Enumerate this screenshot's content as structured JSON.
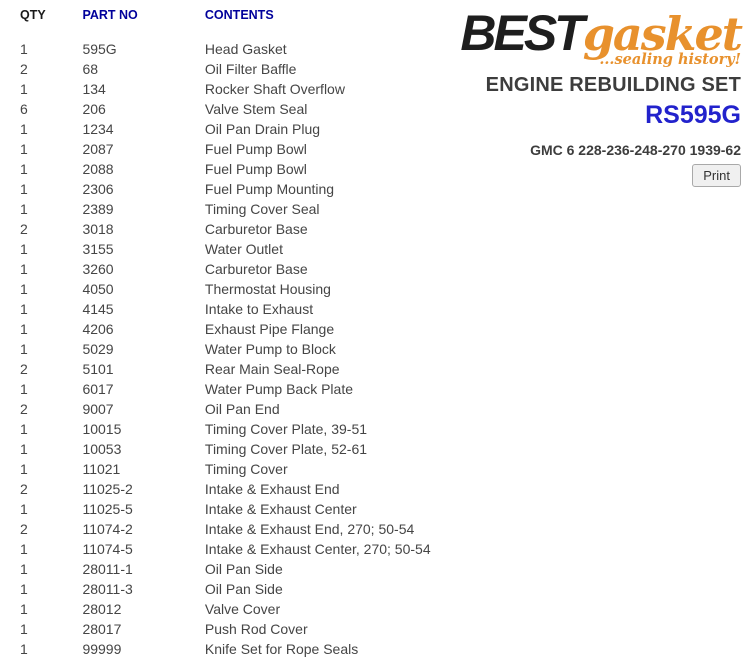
{
  "table": {
    "headers": {
      "qty": "QTY",
      "part_no": "PART NO",
      "contents": "CONTENTS"
    },
    "rows": [
      {
        "qty": "1",
        "part_no": "595G",
        "contents": "Head Gasket"
      },
      {
        "qty": "2",
        "part_no": "68",
        "contents": "Oil Filter Baffle"
      },
      {
        "qty": "1",
        "part_no": "134",
        "contents": "Rocker Shaft Overflow"
      },
      {
        "qty": "6",
        "part_no": "206",
        "contents": "Valve Stem Seal"
      },
      {
        "qty": "1",
        "part_no": "1234",
        "contents": "Oil Pan Drain Plug"
      },
      {
        "qty": "1",
        "part_no": "2087",
        "contents": "Fuel Pump Bowl"
      },
      {
        "qty": "1",
        "part_no": "2088",
        "contents": "Fuel Pump Bowl"
      },
      {
        "qty": "1",
        "part_no": "2306",
        "contents": "Fuel Pump Mounting"
      },
      {
        "qty": "1",
        "part_no": "2389",
        "contents": "Timing Cover Seal"
      },
      {
        "qty": "2",
        "part_no": "3018",
        "contents": "Carburetor Base"
      },
      {
        "qty": "1",
        "part_no": "3155",
        "contents": "Water Outlet"
      },
      {
        "qty": "1",
        "part_no": "3260",
        "contents": "Carburetor Base"
      },
      {
        "qty": "1",
        "part_no": "4050",
        "contents": "Thermostat Housing"
      },
      {
        "qty": "1",
        "part_no": "4145",
        "contents": "Intake to Exhaust"
      },
      {
        "qty": "1",
        "part_no": "4206",
        "contents": "Exhaust Pipe Flange"
      },
      {
        "qty": "1",
        "part_no": "5029",
        "contents": "Water Pump to Block"
      },
      {
        "qty": "2",
        "part_no": "5101",
        "contents": "Rear Main Seal-Rope"
      },
      {
        "qty": "1",
        "part_no": "6017",
        "contents": "Water Pump Back Plate"
      },
      {
        "qty": "2",
        "part_no": "9007",
        "contents": "Oil Pan End"
      },
      {
        "qty": "1",
        "part_no": "10015",
        "contents": "Timing Cover Plate, 39-51"
      },
      {
        "qty": "1",
        "part_no": "10053",
        "contents": "Timing Cover Plate, 52-61"
      },
      {
        "qty": "1",
        "part_no": "11021",
        "contents": "Timing Cover"
      },
      {
        "qty": "2",
        "part_no": "11025-2",
        "contents": "Intake & Exhaust End"
      },
      {
        "qty": "1",
        "part_no": "11025-5",
        "contents": "Intake & Exhaust Center"
      },
      {
        "qty": "2",
        "part_no": "11074-2",
        "contents": "Intake & Exhaust End, 270; 50-54"
      },
      {
        "qty": "1",
        "part_no": "11074-5",
        "contents": "Intake & Exhaust Center, 270; 50-54"
      },
      {
        "qty": "1",
        "part_no": "28011-1",
        "contents": "Oil Pan Side"
      },
      {
        "qty": "1",
        "part_no": "28011-3",
        "contents": "Oil Pan Side"
      },
      {
        "qty": "1",
        "part_no": "28012",
        "contents": "Valve Cover"
      },
      {
        "qty": "1",
        "part_no": "28017",
        "contents": "Push Rod Cover"
      },
      {
        "qty": "1",
        "part_no": "99999",
        "contents": "Knife Set for Rope Seals"
      }
    ]
  },
  "brand": {
    "logo_best": "BEST",
    "logo_gasket": "gasket",
    "tagline": "...sealing history!",
    "product_line": "ENGINE REBUILDING SET",
    "set_number": "RS595G",
    "application": "GMC 6 228-236-248-270 1939-62",
    "print_label": "Print"
  },
  "colors": {
    "header_blue": "#00009B",
    "row_text_gray": "#454545",
    "brand_orange": "#E8912D",
    "set_number_blue": "#2222CC",
    "title_gray": "#3d3d3d"
  }
}
